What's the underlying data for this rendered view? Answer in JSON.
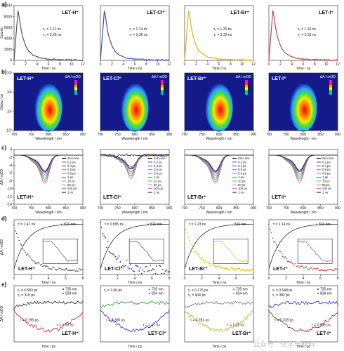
{
  "samples": [
    {
      "name": "LET-H⁺",
      "color": "#555555",
      "tau1": "τ₁ = 1.21 ns",
      "tau2": "τ₂ = 3.26 ns",
      "d_tau": "τ = 1.47 ns",
      "e_t1": "τ₁ = 0.583 ps",
      "e_t2": "τ₂ = 315 ps",
      "e_t3": "τ = 0.195 ps",
      "e_t4": "τ = 1.59 ns"
    },
    {
      "name": "LET-Cl⁺",
      "color": "#3b4fc0",
      "tau1": "τ₁ = 1.14 ns",
      "tau2": "τ₂ = 3.36 ns",
      "d_tau": "τ = 0.895 ns",
      "e_t1": "τ₁ = 2.06 ps",
      "e_t2": "",
      "e_t3": "τ = 0.300 ps",
      "e_t4": "τ = 1.17 ns"
    },
    {
      "name": "LET-Br⁺",
      "color": "#e8b400",
      "tau1": "τ₁ = 1.20 ns",
      "tau2": "τ₂ = 3.32 ns",
      "d_tau": "τ = 1.23 ns",
      "e_t1": "τ₁ = 0.176 ps",
      "e_t2": "τ₂ = 404 ps",
      "e_t3": "τ = 0.281 ps",
      "e_t4": "τ = 1.31 ns"
    },
    {
      "name": "LET-I⁺",
      "color": "#d04040",
      "tau1": "τ₁ = 1.16 ns",
      "tau2": "τ₂ = 3.31 ns",
      "d_tau": "τ = 1.14 ns",
      "e_t1": "τ₁ = 0.548 ps",
      "e_t2": "τ₂ = 382 ps",
      "e_t3": "τ = 0.318 ps",
      "e_t4": "τ = 0.935 ns"
    }
  ],
  "panel_labels": [
    "a)",
    "b)",
    "c)",
    "d)",
    "e)"
  ],
  "a": {
    "ylabel": "Counts",
    "xlabel": "Time / ns",
    "xticks": [
      "0",
      "2",
      "4",
      "6",
      "8",
      "10",
      "12"
    ],
    "yticks": [
      "10000",
      "8000",
      "6000",
      "4000",
      "2000",
      "0"
    ]
  },
  "b": {
    "ylabel": "Delay / ps",
    "xlabel": "Wavelength / nm",
    "xticks": [
      "700",
      "750",
      "800",
      "850",
      "900"
    ],
    "yticks": [
      "10³",
      "10²",
      "10¹",
      "10⁰"
    ],
    "colorbar": "ΔA / mOD"
  },
  "c": {
    "ylabel": "ΔA / mOD",
    "xlabel": "Wavelength / nm",
    "xticks": [
      "700",
      "750",
      "800",
      "850",
      "900"
    ],
    "yticks": [
      "0",
      "-2",
      "-4",
      "-6",
      "-8",
      "-10",
      "-12",
      "-14"
    ],
    "legend": [
      "Zero line",
      "0.2 ps",
      "0.4 ps",
      "0.6 ps",
      "0.8 ps",
      "1 ps",
      "10 ps",
      "50 ps",
      "100 ps",
      "1 ns"
    ]
  },
  "d": {
    "ylabel": "ΔA / mOD",
    "xlabel": "Time / ns",
    "xticks": [
      "0",
      "2",
      "4",
      "6",
      "8"
    ],
    "wavelength": "816 nm"
  },
  "e": {
    "ylabel": "ΔA / mOD",
    "xlabel": "Time / ps",
    "legend": [
      "735 nm",
      "834 nm"
    ]
  },
  "watermark": "公众号 · 化学与材料"
}
